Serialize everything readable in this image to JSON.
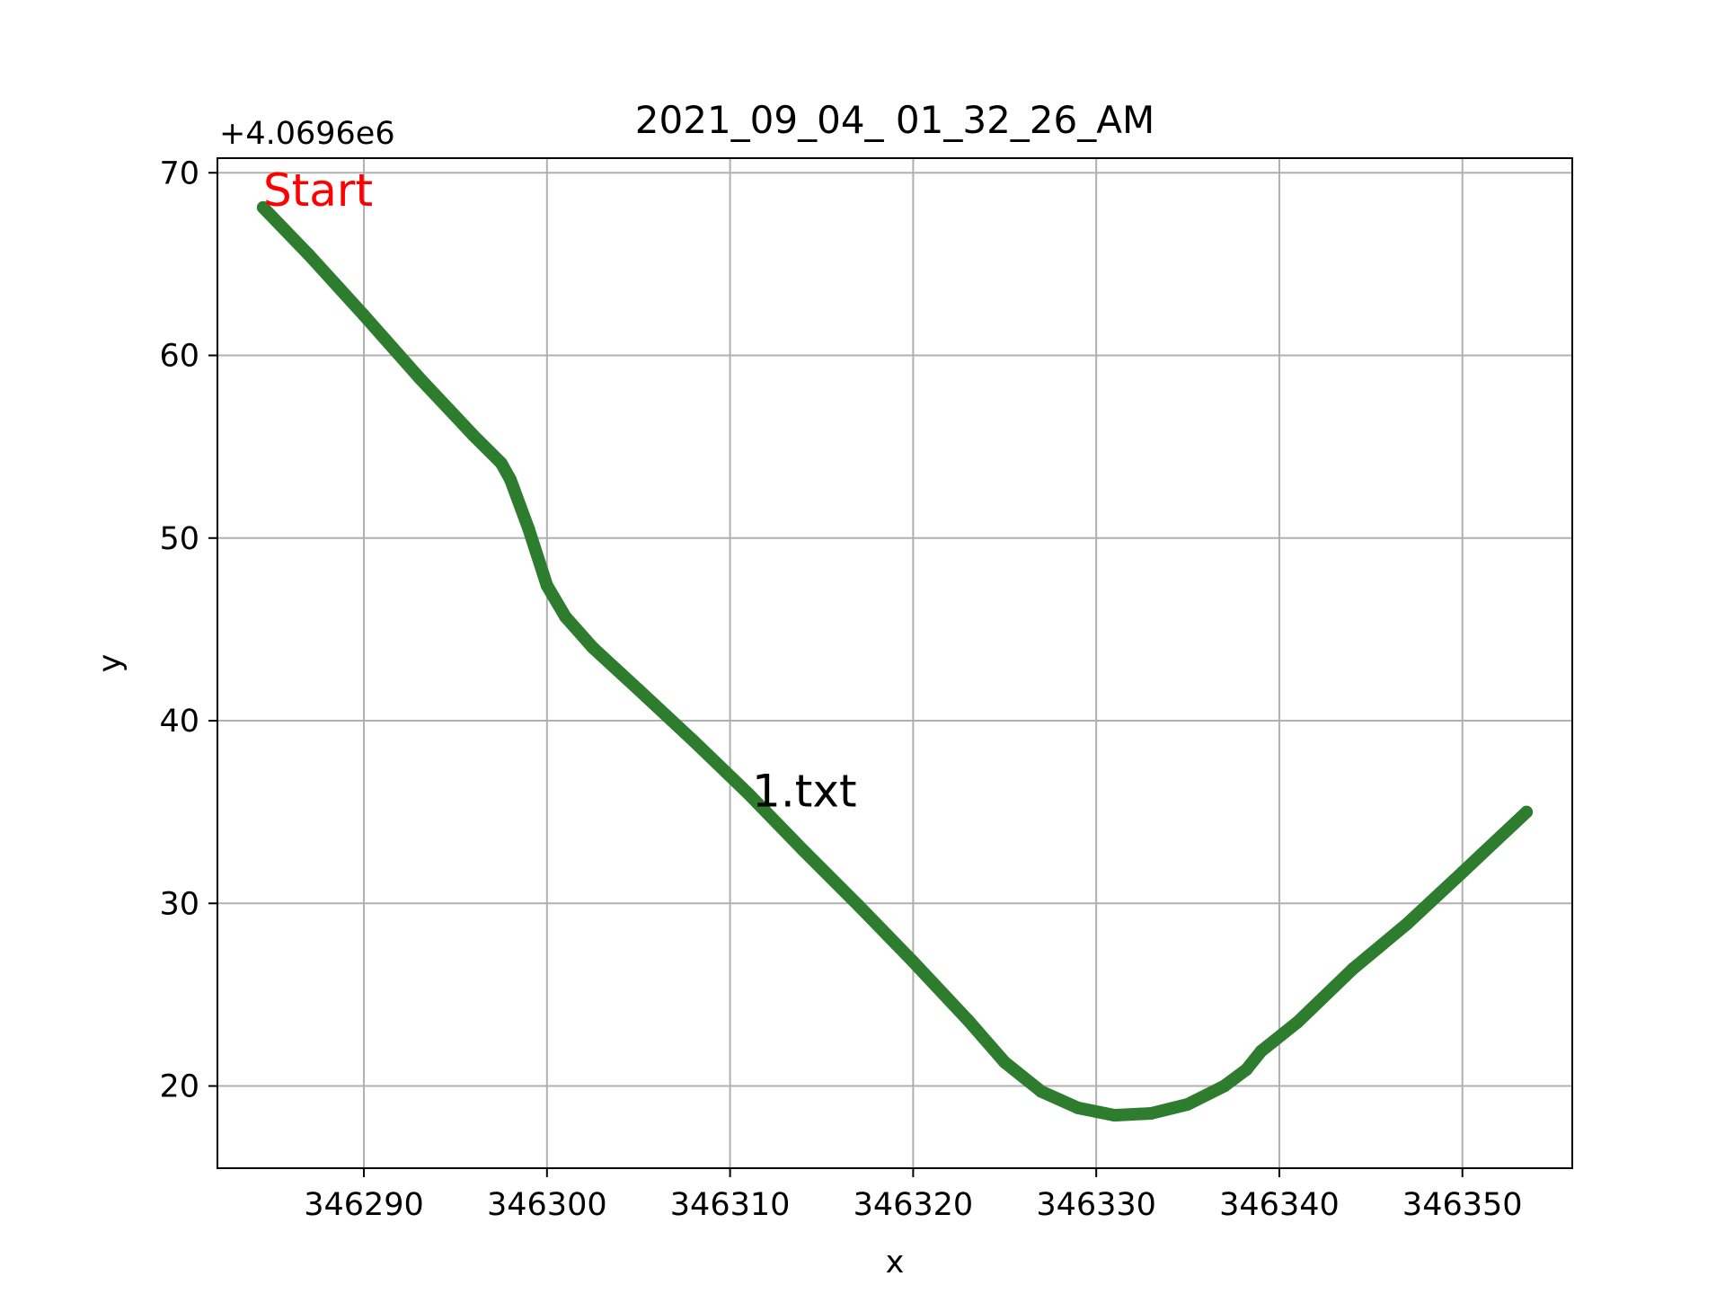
{
  "chart_data": {
    "type": "line",
    "title": "2021_09_04_ 01_32_26_AM",
    "xlabel": "x",
    "ylabel": "y",
    "y_offset_label": "+4.0696e6",
    "y_offset": 4069600,
    "xlim": [
      346282,
      346356
    ],
    "ylim": [
      15.5,
      70.8
    ],
    "xticks": [
      346290,
      346300,
      346310,
      346320,
      346330,
      346340,
      346350
    ],
    "yticks": [
      20,
      30,
      40,
      50,
      60,
      70
    ],
    "grid": true,
    "series": [
      {
        "color": "#2e7d2e",
        "x": [
          346284.5,
          346287,
          346290,
          346293,
          346296,
          346297.5,
          346298,
          346299,
          346300,
          346301,
          346302.5,
          346305,
          346308,
          346311,
          346314,
          346317,
          346320,
          346323,
          346325,
          346327,
          346329,
          346331,
          346333,
          346335,
          346337,
          346338.2,
          346339,
          346341,
          346344,
          346347,
          346350,
          346353.5
        ],
        "y": [
          68.1,
          65.5,
          62.2,
          58.8,
          55.6,
          54.1,
          53.2,
          50.5,
          47.4,
          45.7,
          44.0,
          41.7,
          38.9,
          36.0,
          32.9,
          29.9,
          26.8,
          23.6,
          21.3,
          19.7,
          18.8,
          18.4,
          18.5,
          19.0,
          20.0,
          20.9,
          21.9,
          23.5,
          26.4,
          28.9,
          31.7,
          35.0
        ]
      }
    ],
    "annotations": [
      {
        "text": "Start",
        "x": 346284.5,
        "y": 68.1,
        "color": "#ff0000"
      },
      {
        "text": "1.txt",
        "x": 346311.2,
        "y": 35.2,
        "color": "#000000"
      }
    ]
  }
}
